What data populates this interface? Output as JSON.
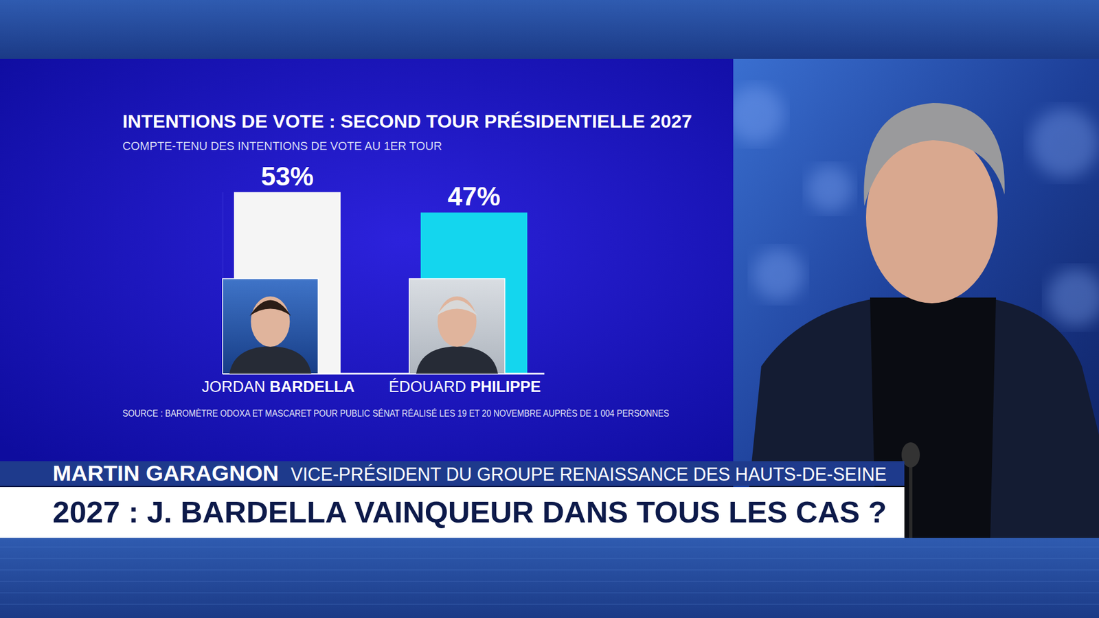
{
  "chart_data": {
    "type": "bar",
    "title": "INTENTIONS DE VOTE : SECOND TOUR PRÉSIDENTIELLE 2027",
    "subtitle": "COMPTE-TENU DES INTENTIONS DE VOTE AU 1ER TOUR",
    "categories": [
      "JORDAN BARDELLA",
      "ÉDOUARD PHILIPPE"
    ],
    "values": [
      53,
      47
    ],
    "value_labels": [
      "53%",
      "47%"
    ],
    "colors": [
      "#f5f5f5",
      "#14d6ee"
    ],
    "ylim": [
      0,
      53
    ],
    "data_labels": true,
    "tick_labels": false,
    "grid": false,
    "source": "SOURCE : BAROMÈTRE ODOXA ET MASCARET POUR PUBLIC SÉNAT RÉALISÉ LES 19 ET 20 NOVEMBRE AUPRÈS DE 1 004 PERSONNES"
  },
  "banner": {
    "name": "MARTIN GARAGNON",
    "role": "VICE-PRÉSIDENT DU GROUPE RENAISSANCE DES HAUTS-DE-SEINE",
    "headline": "2027 : J. BARDELLA VAINQUEUR DANS TOUS LES CAS ?"
  }
}
